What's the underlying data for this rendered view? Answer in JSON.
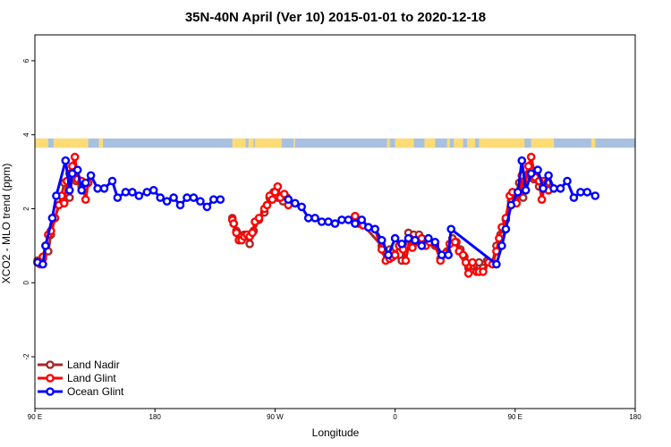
{
  "chart_data": {
    "type": "line",
    "title": "35N-40N April (Ver 10)   2015-01-01 to 2020-12-18",
    "xlabel": "Longitude",
    "ylabel": "XCO2 - MLO trend (ppm)",
    "xlim": [
      90,
      540
    ],
    "ylim": [
      -3.4,
      6.7
    ],
    "x_ticks": [
      {
        "value": 90,
        "label": "90 E"
      },
      {
        "value": 180,
        "label": "180"
      },
      {
        "value": 270,
        "label": "90 W"
      },
      {
        "value": 360,
        "label": "0"
      },
      {
        "value": 450,
        "label": "90 E"
      },
      {
        "value": 540,
        "label": "180"
      }
    ],
    "y_ticks": [
      -2,
      0,
      2,
      4,
      6
    ],
    "legend_position": "bottom-left",
    "land_mask": {
      "y_range": [
        3.65,
        3.9
      ],
      "land_color": "#fddc76",
      "ocean_color": "#a9c1e0",
      "land_spans": [
        [
          90,
          100
        ],
        [
          104,
          130
        ],
        [
          138,
          141
        ],
        [
          238,
          248
        ],
        [
          250,
          254
        ],
        [
          255,
          275
        ],
        [
          284,
          285
        ],
        [
          354,
          356
        ],
        [
          360,
          374
        ],
        [
          382,
          390
        ],
        [
          399,
          401
        ],
        [
          404,
          411
        ],
        [
          414,
          420
        ],
        [
          423,
          457
        ],
        [
          462,
          479
        ],
        [
          507,
          510
        ]
      ]
    },
    "series": [
      {
        "name": "Land Nadir",
        "color": "#a52a2a",
        "segments": [
          [
            [
              92,
              0.6
            ],
            [
              94,
              0.6
            ],
            [
              96,
              0.65
            ],
            [
              100,
              0.85
            ],
            [
              102,
              1.3
            ],
            [
              105,
              1.75
            ],
            [
              108,
              2.1
            ],
            [
              110,
              2.35
            ],
            [
              112,
              2.7
            ],
            [
              114,
              2.75
            ],
            [
              116,
              2.3
            ],
            [
              118,
              2.85
            ],
            [
              121,
              2.75
            ],
            [
              125,
              2.6
            ],
            [
              128,
              2.7
            ]
          ],
          [
            [
              238,
              1.75
            ],
            [
              239,
              1.6
            ],
            [
              241,
              1.4
            ],
            [
              243,
              1.3
            ],
            [
              247,
              1.3
            ],
            [
              251,
              1.05
            ],
            [
              254,
              1.4
            ],
            [
              258,
              1.7
            ],
            [
              262,
              1.9
            ],
            [
              264,
              2.1
            ],
            [
              266,
              2.3
            ],
            [
              269,
              2.45
            ],
            [
              272,
              2.3
            ],
            [
              276,
              2.2
            ],
            [
              279,
              2.3
            ],
            [
              280,
              2.25
            ]
          ],
          [
            [
              330,
              1.8
            ],
            [
              350,
              1.0
            ],
            [
              352,
              0.85
            ],
            [
              356,
              0.9
            ],
            [
              358,
              0.8
            ],
            [
              360,
              0.75
            ],
            [
              365,
              0.6
            ],
            [
              370,
              1.35
            ],
            [
              374,
              1.3
            ],
            [
              378,
              1.3
            ],
            [
              382,
              1.05
            ],
            [
              386,
              1.1
            ],
            [
              390,
              1.0
            ],
            [
              394,
              0.65
            ],
            [
              399,
              0.85
            ],
            [
              403,
              1.2
            ],
            [
              406,
              1.1
            ],
            [
              409,
              0.9
            ],
            [
              412,
              0.7
            ],
            [
              415,
              0.4
            ],
            [
              419,
              0.45
            ],
            [
              423,
              0.55
            ],
            [
              426,
              0.4
            ],
            [
              429,
              0.6
            ],
            [
              433,
              0.55
            ],
            [
              436,
              1.0
            ],
            [
              439,
              1.3
            ],
            [
              443,
              1.7
            ],
            [
              447,
              2.2
            ],
            [
              450,
              2.3
            ],
            [
              453,
              2.7
            ],
            [
              456,
              2.3
            ],
            [
              458,
              2.8
            ],
            [
              460,
              2.95
            ],
            [
              464,
              2.8
            ],
            [
              468,
              2.6
            ],
            [
              471,
              2.75
            ],
            [
              474,
              2.7
            ]
          ]
        ]
      },
      {
        "name": "Land Glint",
        "color": "#ff0000",
        "segments": [
          [
            [
              92,
              0.55
            ],
            [
              94,
              0.5
            ],
            [
              96,
              0.7
            ],
            [
              98,
              1.0
            ],
            [
              100,
              1.3
            ],
            [
              102,
              1.4
            ],
            [
              105,
              1.75
            ],
            [
              108,
              2.1
            ],
            [
              110,
              2.35
            ],
            [
              112,
              2.15
            ],
            [
              114,
              2.75
            ],
            [
              116,
              2.95
            ],
            [
              118,
              3.15
            ],
            [
              120,
              3.4
            ],
            [
              122,
              2.8
            ],
            [
              125,
              2.75
            ],
            [
              128,
              2.25
            ],
            [
              130,
              2.7
            ]
          ],
          [
            [
              238,
              1.7
            ],
            [
              239,
              1.6
            ],
            [
              241,
              1.35
            ],
            [
              243,
              1.15
            ],
            [
              245,
              1.15
            ],
            [
              247,
              1.25
            ],
            [
              249,
              1.3
            ],
            [
              251,
              1.25
            ],
            [
              253,
              1.35
            ],
            [
              255,
              1.65
            ],
            [
              258,
              1.75
            ],
            [
              262,
              2.0
            ],
            [
              264,
              2.1
            ],
            [
              266,
              2.35
            ],
            [
              268,
              2.25
            ],
            [
              270,
              2.45
            ],
            [
              272,
              2.6
            ],
            [
              274,
              2.3
            ],
            [
              277,
              2.4
            ],
            [
              280,
              2.1
            ]
          ],
          [
            [
              330,
              1.8
            ],
            [
              333,
              1.6
            ],
            [
              336,
              1.55
            ],
            [
              340,
              1.5
            ],
            [
              345,
              1.45
            ],
            [
              350,
              0.9
            ],
            [
              353,
              0.6
            ],
            [
              356,
              0.65
            ],
            [
              358,
              0.7
            ],
            [
              360,
              0.75
            ],
            [
              363,
              1.0
            ],
            [
              366,
              0.9
            ],
            [
              368,
              0.6
            ],
            [
              371,
              1.2
            ],
            [
              373,
              0.95
            ],
            [
              377,
              1.1
            ],
            [
              380,
              1.2
            ],
            [
              383,
              1.0
            ],
            [
              386,
              1.1
            ],
            [
              390,
              1.05
            ],
            [
              394,
              0.6
            ],
            [
              398,
              0.8
            ],
            [
              401,
              1.05
            ],
            [
              405,
              1.1
            ],
            [
              408,
              0.85
            ],
            [
              411,
              0.75
            ],
            [
              413,
              0.55
            ],
            [
              415,
              0.25
            ],
            [
              418,
              0.55
            ],
            [
              421,
              0.3
            ],
            [
              423,
              0.3
            ],
            [
              426,
              0.3
            ],
            [
              430,
              0.55
            ],
            [
              433,
              0.5
            ],
            [
              436,
              0.85
            ],
            [
              438,
              1.2
            ],
            [
              440,
              1.5
            ],
            [
              443,
              1.75
            ],
            [
              446,
              2.35
            ],
            [
              448,
              2.45
            ],
            [
              451,
              2.15
            ],
            [
              453,
              2.45
            ],
            [
              455,
              2.9
            ],
            [
              457,
              2.55
            ],
            [
              460,
              3.15
            ],
            [
              462,
              3.4
            ],
            [
              465,
              2.85
            ],
            [
              468,
              2.75
            ],
            [
              470,
              2.25
            ],
            [
              472,
              2.6
            ],
            [
              475,
              2.5
            ]
          ]
        ]
      },
      {
        "name": "Ocean Glint",
        "color": "#0000ff",
        "segments": [
          [
            [
              92,
              0.55
            ],
            [
              96,
              0.5
            ],
            [
              98,
              1.0
            ],
            [
              103,
              1.75
            ],
            [
              106,
              2.35
            ],
            [
              113,
              3.3
            ],
            [
              116,
              2.5
            ],
            [
              118,
              2.95
            ],
            [
              122,
              3.05
            ],
            [
              125,
              2.5
            ],
            [
              128,
              2.7
            ],
            [
              132,
              2.9
            ],
            [
              137,
              2.55
            ],
            [
              142,
              2.55
            ],
            [
              148,
              2.75
            ],
            [
              152,
              2.3
            ],
            [
              158,
              2.45
            ],
            [
              163,
              2.45
            ],
            [
              168,
              2.35
            ],
            [
              174,
              2.45
            ],
            [
              179,
              2.5
            ],
            [
              184,
              2.3
            ],
            [
              189,
              2.2
            ],
            [
              194,
              2.3
            ],
            [
              199,
              2.1
            ],
            [
              204,
              2.3
            ],
            [
              209,
              2.3
            ],
            [
              214,
              2.2
            ],
            [
              219,
              2.05
            ],
            [
              224,
              2.25
            ],
            [
              229,
              2.25
            ]
          ],
          [
            [
              280,
              2.25
            ],
            [
              285,
              2.15
            ],
            [
              290,
              2.05
            ],
            [
              295,
              1.75
            ],
            [
              300,
              1.75
            ],
            [
              305,
              1.65
            ],
            [
              310,
              1.65
            ],
            [
              315,
              1.6
            ],
            [
              320,
              1.7
            ],
            [
              325,
              1.7
            ],
            [
              330,
              1.6
            ],
            [
              335,
              1.7
            ],
            [
              340,
              1.5
            ],
            [
              345,
              1.45
            ],
            [
              350,
              1.15
            ],
            [
              355,
              0.75
            ],
            [
              360,
              1.2
            ],
            [
              365,
              1.05
            ],
            [
              370,
              1.2
            ],
            [
              375,
              1.15
            ],
            [
              380,
              1.0
            ],
            [
              385,
              1.2
            ],
            [
              390,
              1.1
            ],
            [
              395,
              0.75
            ],
            [
              400,
              0.75
            ],
            [
              402,
              1.45
            ],
            [
              436,
              0.5
            ],
            [
              440,
              1.0
            ],
            [
              443,
              1.45
            ],
            [
              447,
              2.1
            ],
            [
              452,
              2.45
            ],
            [
              455,
              3.3
            ],
            [
              458,
              2.5
            ],
            [
              462,
              2.95
            ],
            [
              467,
              3.05
            ],
            [
              471,
              2.55
            ],
            [
              475,
              2.9
            ],
            [
              479,
              2.55
            ],
            [
              484,
              2.55
            ],
            [
              489,
              2.75
            ],
            [
              494,
              2.3
            ],
            [
              499,
              2.45
            ],
            [
              504,
              2.45
            ],
            [
              510,
              2.35
            ]
          ]
        ]
      }
    ]
  }
}
